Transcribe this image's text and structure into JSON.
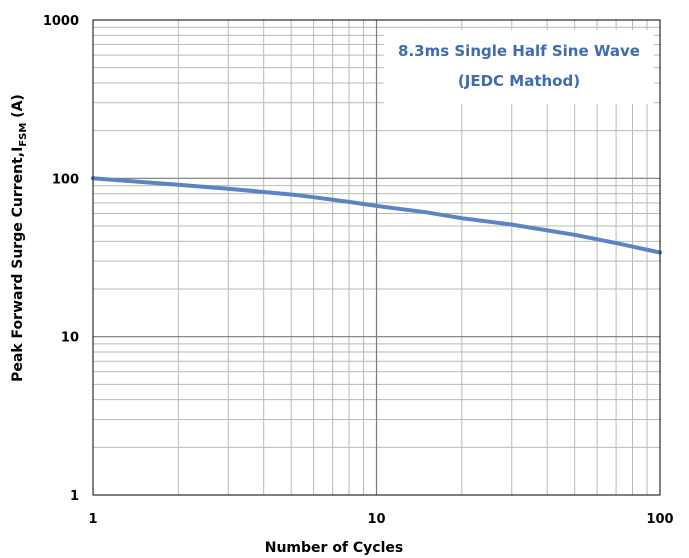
{
  "chart_data": {
    "type": "line",
    "title": "",
    "xlabel": "Number of Cycles",
    "ylabel_main": "Peak Forward Surge Current,I",
    "ylabel_sub": "FSM",
    "ylabel_unit": " (A)",
    "xscale": "log",
    "yscale": "log",
    "xlim": [
      1,
      100
    ],
    "ylim": [
      1,
      1000
    ],
    "grid": true,
    "x_ticks": [
      "1",
      "10",
      "100"
    ],
    "y_ticks": [
      "1",
      "10",
      "100",
      "1000"
    ],
    "annotation": [
      "8.3ms Single Half Sine Wave",
      "(JEDC Mathod)"
    ],
    "series": [
      {
        "color": "#5b84c4",
        "x": [
          1,
          2,
          3,
          4,
          5,
          6,
          8,
          10,
          15,
          20,
          30,
          50,
          70,
          100
        ],
        "y": [
          100,
          91,
          86,
          82,
          79,
          76,
          71,
          67,
          61,
          56,
          51,
          44,
          39,
          34
        ]
      }
    ]
  }
}
